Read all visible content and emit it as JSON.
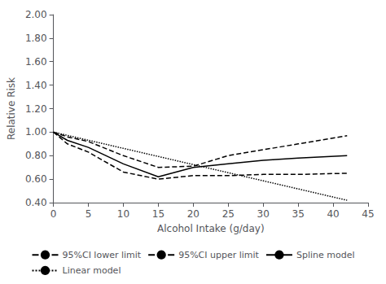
{
  "chart_data": {
    "type": "line",
    "xlabel": "Alcohol Intake (g/day)",
    "ylabel": "Relative Risk",
    "xlim": [
      0,
      45
    ],
    "xticks": [
      0,
      5,
      10,
      15,
      20,
      25,
      30,
      35,
      40,
      45
    ],
    "ylim": [
      0.4,
      2.0
    ],
    "yticks": [
      {
        "value": 0.4,
        "label": "0.40"
      },
      {
        "value": 0.6,
        "label": "0.60"
      },
      {
        "value": 0.8,
        "label": "0.80"
      },
      {
        "value": 1.0,
        "label": "1.00"
      },
      {
        "value": 1.2,
        "label": "1.20"
      },
      {
        "value": 1.4,
        "label": "1.40"
      },
      {
        "value": 1.6,
        "label": "1.60"
      },
      {
        "value": 1.8,
        "label": "1.80"
      },
      {
        "value": 2.0,
        "label": "2.00"
      }
    ],
    "grid": false,
    "legend": "bottom",
    "series": [
      {
        "name": "95%CI lower limit",
        "color": "#000000",
        "line_style": "dashed",
        "x": [
          0,
          2,
          5,
          10,
          15,
          20,
          25,
          30,
          35,
          42
        ],
        "values": [
          1.0,
          0.9,
          0.83,
          0.66,
          0.6,
          0.63,
          0.63,
          0.64,
          0.64,
          0.65
        ]
      },
      {
        "name": "95%CI upper limit",
        "color": "#000000",
        "line_style": "dashed",
        "x": [
          0,
          2,
          5,
          10,
          15,
          20,
          25,
          30,
          35,
          42
        ],
        "values": [
          1.0,
          0.96,
          0.92,
          0.8,
          0.7,
          0.71,
          0.8,
          0.85,
          0.9,
          0.97
        ]
      },
      {
        "name": "Spline model",
        "color": "#000000",
        "line_style": "solid",
        "x": [
          0,
          2,
          5,
          10,
          15,
          20,
          25,
          30,
          35,
          42
        ],
        "values": [
          1.0,
          0.93,
          0.87,
          0.73,
          0.62,
          0.7,
          0.73,
          0.76,
          0.78,
          0.8
        ]
      },
      {
        "name": "Linear model",
        "color": "#000000",
        "line_style": "dotted",
        "x": [
          0,
          42
        ],
        "values": [
          1.0,
          0.42
        ]
      }
    ]
  }
}
